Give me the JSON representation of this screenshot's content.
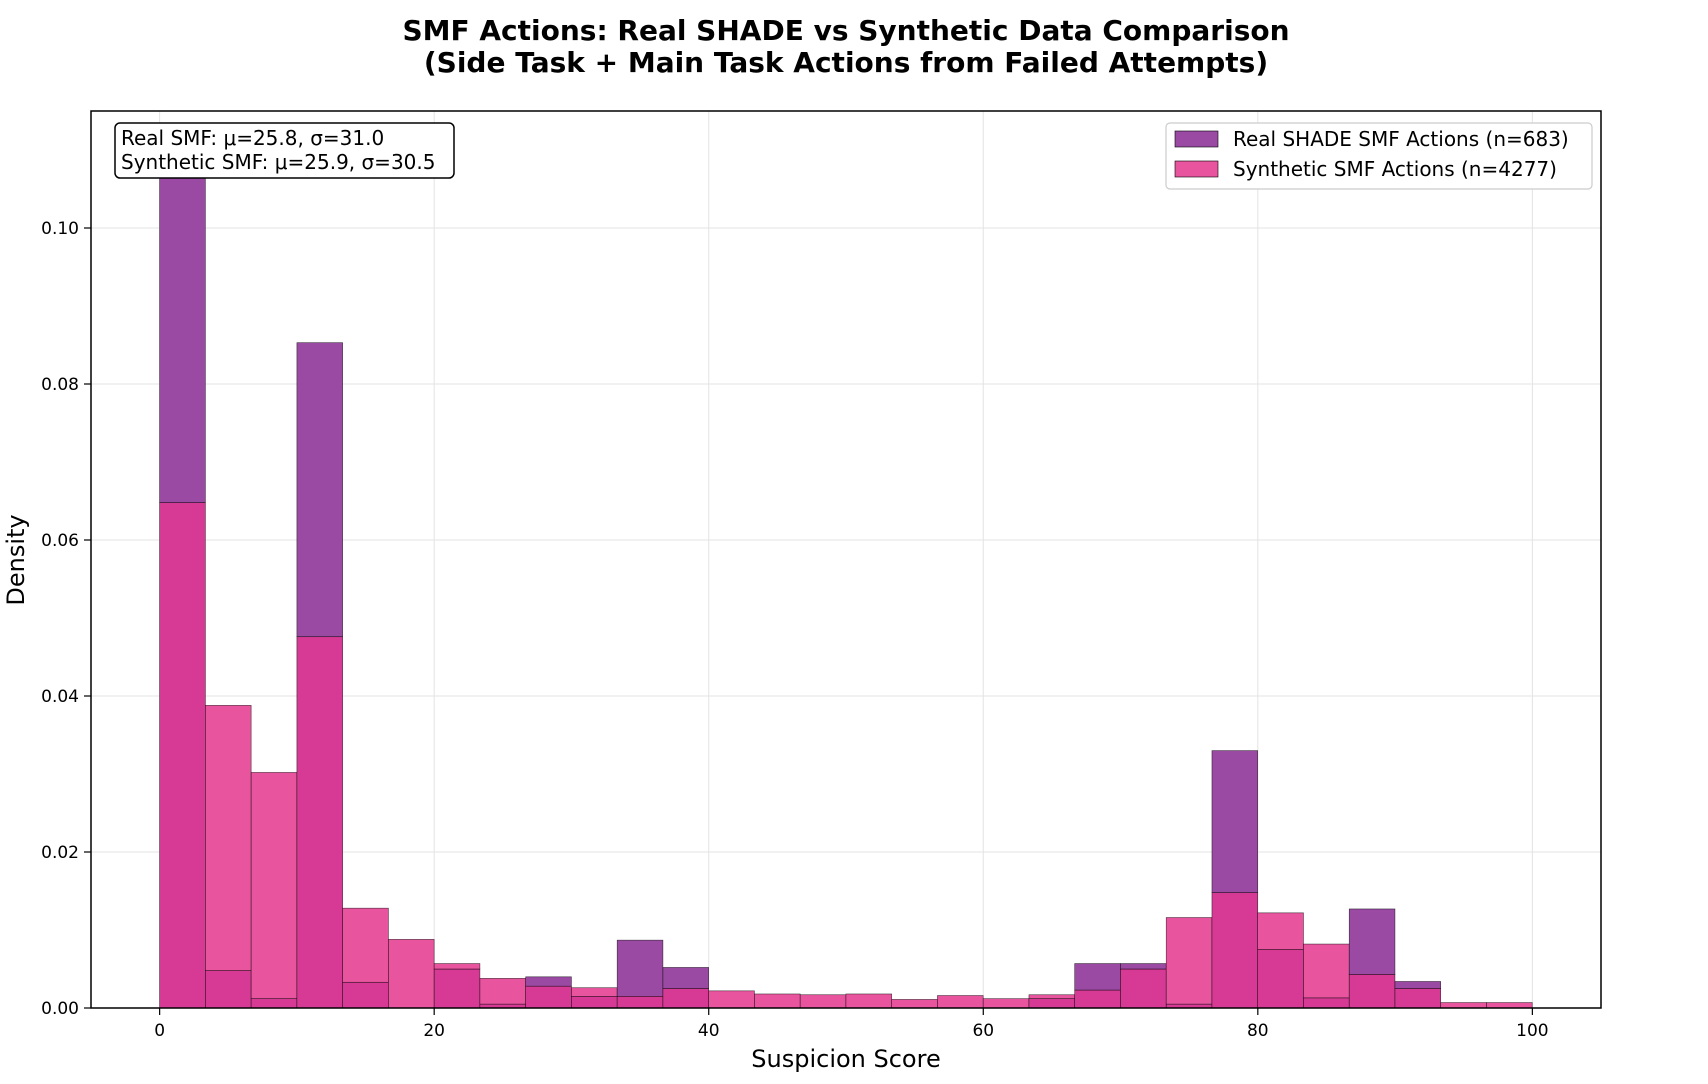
{
  "chart_data": {
    "type": "bar",
    "title_line1": "SMF Actions: Real SHADE vs Synthetic Data Comparison",
    "title_line2": "(Side Task + Main Task Actions from Failed Attempts)",
    "xlabel": "Suspicion Score",
    "ylabel": "Density",
    "xlim": [
      -5,
      105
    ],
    "ylim": [
      0,
      0.115
    ],
    "xticks": [
      0,
      20,
      40,
      60,
      80,
      100
    ],
    "xtick_labels": [
      "0",
      "20",
      "40",
      "60",
      "80",
      "100"
    ],
    "yticks": [
      0.0,
      0.02,
      0.04,
      0.06,
      0.08,
      0.1
    ],
    "ytick_labels": [
      "0.00",
      "0.02",
      "0.04",
      "0.06",
      "0.08",
      "0.10"
    ],
    "grid": true,
    "legend_position": "upper right",
    "bin_start": 0,
    "bin_width": 3.333,
    "series": [
      {
        "name": "Real SHADE SMF Actions (n=683)",
        "color": "#9b4aa3",
        "values": [
          0.11,
          0.0048,
          0.0012,
          0.0853,
          0.0033,
          0.0,
          0.005,
          0.0005,
          0.004,
          0.0015,
          0.0087,
          0.0052,
          0.0,
          0.0,
          0.0,
          0.0,
          0.0,
          0.0,
          0.0,
          0.0012,
          0.0057,
          0.0057,
          0.0005,
          0.033,
          0.0075,
          0.0013,
          0.0127,
          0.0034,
          0.0,
          0.0
        ]
      },
      {
        "name": "Synthetic SMF Actions (n=4277)",
        "color": "#e8559e",
        "values": [
          0.0648,
          0.0388,
          0.0302,
          0.0476,
          0.0128,
          0.0088,
          0.0057,
          0.0038,
          0.0028,
          0.0026,
          0.0015,
          0.0025,
          0.0022,
          0.0018,
          0.0017,
          0.0018,
          0.0011,
          0.0016,
          0.0012,
          0.0017,
          0.0023,
          0.005,
          0.0116,
          0.0148,
          0.0122,
          0.0082,
          0.0043,
          0.0025,
          0.0007,
          0.0007
        ]
      }
    ],
    "overlap_color": "#d63a95",
    "stats_line1": "Real SMF: μ=25.8, σ=31.0",
    "stats_line2": "Synthetic SMF: μ=25.9, σ=30.5"
  }
}
